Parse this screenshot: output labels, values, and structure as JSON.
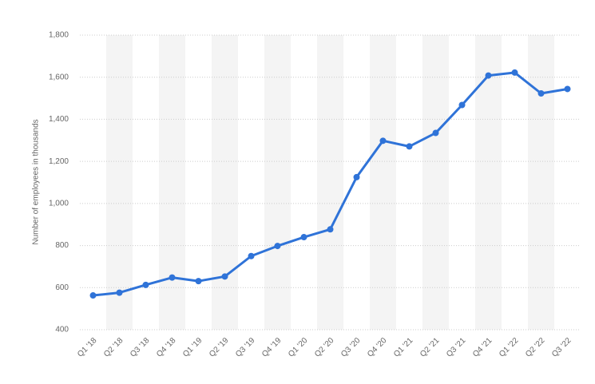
{
  "chart_data": {
    "type": "line",
    "y_label": "Number of employees in thousands",
    "categories": [
      "Q1 '18",
      "Q2 '18",
      "Q3 '18",
      "Q4 '18",
      "Q1 '19",
      "Q2 '19",
      "Q3 '19",
      "Q4 '19",
      "Q1 '20",
      "Q2 '20",
      "Q3 '20",
      "Q4 '20",
      "Q1 '21",
      "Q2 '21",
      "Q3 '21",
      "Q4 '21",
      "Q1 '22",
      "Q2 '22",
      "Q3 '22"
    ],
    "values": [
      563,
      576,
      613,
      648,
      631,
      653,
      750,
      798,
      840,
      877,
      1125,
      1298,
      1271,
      1335,
      1468,
      1608,
      1622,
      1523,
      1544
    ],
    "color": "#2f73d8",
    "ylim": [
      400,
      1800
    ],
    "yticks": [
      400,
      600,
      800,
      {
        "value": 1000,
        "label": "1,000"
      },
      {
        "value": 1200,
        "label": "1,200"
      },
      {
        "value": 1400,
        "label": "1,400"
      },
      {
        "value": 1600,
        "label": "1,600"
      },
      {
        "value": 1800,
        "label": "1,800"
      }
    ],
    "grid": true
  }
}
